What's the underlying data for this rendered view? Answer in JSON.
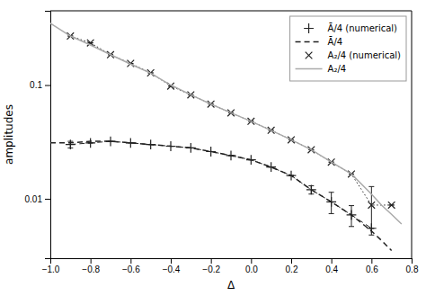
{
  "chart_data": {
    "type": "line",
    "xlabel": "Δ",
    "ylabel": "amplitudes",
    "log": "y",
    "grid": false,
    "legend": "upper right",
    "xlim": [
      -1.0,
      0.8
    ],
    "ylim": [
      0.003,
      0.45
    ],
    "xticks": [
      {
        "value": -1.0,
        "label": "−1.0"
      },
      {
        "value": -0.8,
        "label": "−0.8"
      },
      {
        "value": -0.6,
        "label": "−0.6"
      },
      {
        "value": -0.4,
        "label": "−0.4"
      },
      {
        "value": -0.2,
        "label": "−0.2"
      },
      {
        "value": 0.0,
        "label": "0.0"
      },
      0.2,
      0.4,
      0.6,
      0.8
    ],
    "yticks": [
      0.01,
      0.1
    ],
    "series": [
      {
        "name": "Ā/4 (numerical)",
        "color": "#222222",
        "marker": "plus",
        "line_style": "dashed",
        "x": [
          -0.9,
          -0.8,
          -0.7,
          -0.6,
          -0.5,
          -0.4,
          -0.3,
          -0.2,
          -0.1,
          0.0,
          0.1,
          0.2,
          0.3,
          0.4,
          0.5,
          0.6
        ],
        "values": [
          0.03,
          0.031,
          0.032,
          0.031,
          0.03,
          0.029,
          0.028,
          0.026,
          0.024,
          0.022,
          0.019,
          0.016,
          0.012,
          0.0094,
          0.0072,
          0.0055
        ],
        "yerr_lo": [
          0.002,
          0.0,
          0.0,
          0.0,
          0.0,
          0.0,
          0.0,
          0.0,
          0.0,
          0.0,
          0.0,
          0.0,
          0.001,
          0.002,
          0.0015,
          0.0
        ],
        "yerr_hi": [
          0.002,
          0.0,
          0.0,
          0.0,
          0.0,
          0.0,
          0.0,
          0.0,
          0.0,
          0.0,
          0.0,
          0.0,
          0.001,
          0.002,
          0.0015,
          0.0
        ]
      },
      {
        "name": "Ā/4",
        "color": "#222222",
        "line_style": "dashed",
        "x": [
          -1.0,
          -0.9,
          -0.8,
          -0.7,
          -0.6,
          -0.5,
          -0.4,
          -0.3,
          -0.2,
          -0.1,
          0.0,
          0.1,
          0.2,
          0.3,
          0.4,
          0.5,
          0.6,
          0.65,
          0.7
        ],
        "values": [
          0.031,
          0.031,
          0.032,
          0.032,
          0.031,
          0.03,
          0.029,
          0.028,
          0.026,
          0.024,
          0.022,
          0.019,
          0.016,
          0.012,
          0.0094,
          0.0072,
          0.0052,
          0.0043,
          0.0035
        ]
      },
      {
        "name": "A₂/4 (numerical)",
        "color": "#222222",
        "marker": "cross",
        "line_style": "dotted",
        "x": [
          -0.9,
          -0.8,
          -0.7,
          -0.6,
          -0.5,
          -0.4,
          -0.3,
          -0.2,
          -0.1,
          0.0,
          0.1,
          0.2,
          0.3,
          0.4,
          0.5,
          0.6,
          0.7
        ],
        "values": [
          0.27,
          0.235,
          0.185,
          0.155,
          0.128,
          0.098,
          0.082,
          0.068,
          0.057,
          0.048,
          0.04,
          0.033,
          0.027,
          0.021,
          0.0165,
          0.0088,
          0.0088
        ],
        "yerr_lo": [
          0.0,
          0.0,
          0.0,
          0.0,
          0.0,
          0.0,
          0.0,
          0.0,
          0.0,
          0.0,
          0.0,
          0.0,
          0.0,
          0.0,
          0.0,
          0.004,
          0.0
        ],
        "yerr_hi": [
          0.0,
          0.0,
          0.0,
          0.0,
          0.0,
          0.0,
          0.0,
          0.0,
          0.0,
          0.0,
          0.0,
          0.0,
          0.0,
          0.0,
          0.0,
          0.004,
          0.0
        ]
      },
      {
        "name": "A₂/4",
        "color": "#aaaaaa",
        "line_style": "solid",
        "x": [
          -1.0,
          -0.9,
          -0.8,
          -0.7,
          -0.6,
          -0.5,
          -0.4,
          -0.3,
          -0.2,
          -0.1,
          0.0,
          0.1,
          0.2,
          0.3,
          0.4,
          0.5,
          0.6,
          0.65,
          0.7,
          0.75
        ],
        "values": [
          0.35,
          0.27,
          0.225,
          0.185,
          0.153,
          0.127,
          0.1,
          0.082,
          0.068,
          0.057,
          0.048,
          0.04,
          0.033,
          0.027,
          0.021,
          0.0165,
          0.011,
          0.0088,
          0.0073,
          0.006
        ]
      }
    ]
  }
}
